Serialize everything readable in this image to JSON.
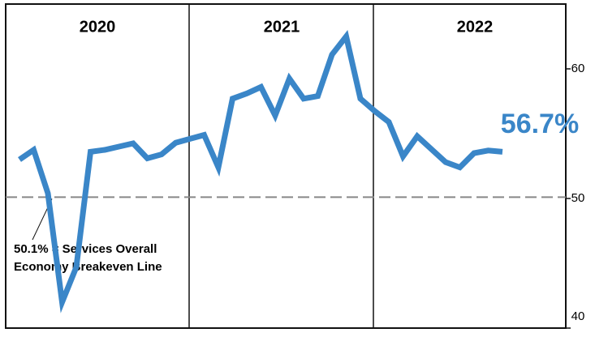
{
  "chart_data": {
    "type": "line",
    "year_labels": [
      "2020",
      "2021",
      "2022"
    ],
    "categories": [
      null,
      null,
      null,
      null,
      null,
      null,
      null,
      null,
      null,
      null,
      null,
      null,
      null,
      null,
      null,
      null,
      null,
      null,
      null,
      null,
      null,
      null,
      null,
      null,
      null,
      null,
      null,
      null,
      null,
      null,
      null,
      null,
      null,
      null,
      null
    ],
    "series": [
      {
        "color": "#3a86c8",
        "values": [
          53.0,
          53.75,
          50.4,
          42.0,
          44.7,
          53.6,
          53.75,
          54.0,
          54.25,
          53.1,
          53.4,
          54.3,
          54.6,
          54.9,
          52.4,
          57.7,
          58.1,
          58.6,
          56.4,
          59.25,
          57.7,
          57.9,
          61.1,
          62.5,
          57.7,
          56.75,
          55.9,
          53.25,
          54.8,
          53.8,
          52.8,
          52.4,
          53.5,
          53.7,
          53.6
        ]
      }
    ],
    "annotation": "56.7%",
    "reference_line": {
      "value": 50.1,
      "label": [
        "50.1% = Services Overall",
        "Economy Breakeven Line"
      ]
    },
    "ylim": [
      40,
      65
    ],
    "yticks": [
      40,
      50,
      60
    ]
  }
}
